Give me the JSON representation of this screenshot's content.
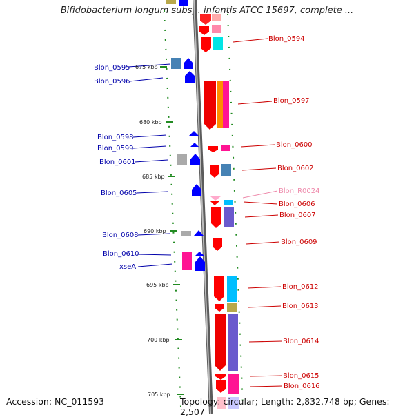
{
  "title": "Bifidobacterium longum subsp. infantis ATCC 15697, complete ...",
  "footer": {
    "accession": "Accession: NC_011593",
    "summary": "Topology: circular; Length: 2,832,748 bp; Genes: 2,507"
  },
  "colors": {
    "backbone": "#888888",
    "right_label": "#cc0000",
    "left_label": "#0000aa",
    "rna_label": "#ee88aa",
    "tick": "#228b22"
  },
  "kbp_marks": [
    "675 kbp",
    "680 kbp",
    "685 kbp",
    "690 kbp",
    "695 kbp",
    "700 kbp",
    "705 kbp"
  ],
  "left_labels": [
    "Blon_0595",
    "Blon_0596",
    "Blon_0598",
    "Blon_0599",
    "Blon_0601",
    "Blon_0605",
    "Blon_0608",
    "Blon_0610",
    "xseA"
  ],
  "right_labels": [
    "Blon_0594",
    "Blon_0597",
    "Blon_0600",
    "Blon_0602",
    "Blon_R0024",
    "Blon_0606",
    "Blon_0607",
    "Blon_0609",
    "Blon_0612",
    "Blon_0613",
    "Blon_0614",
    "Blon_0615",
    "Blon_0616"
  ]
}
